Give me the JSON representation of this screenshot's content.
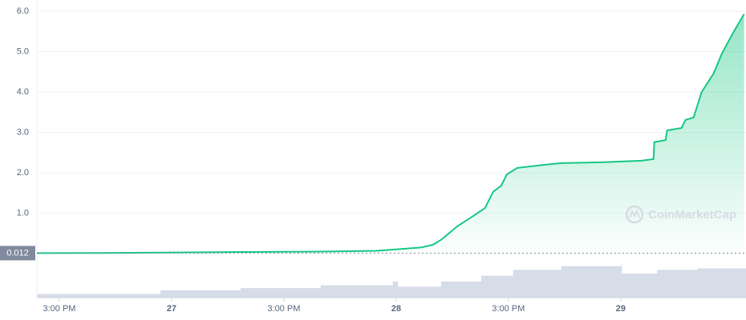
{
  "chart_data": {
    "type": "line",
    "color": "#16c784",
    "x": [
      -14.4,
      -8.06,
      -1.2,
      7.37,
      15.94,
      21.94,
      23.66,
      26.66,
      27.94,
      28.8,
      30.51,
      32.23,
      33.51,
      34.37,
      35.23,
      35.83,
      36.94,
      39.94,
      41.66,
      45.94,
      50.23,
      51.51,
      51.6,
      52.8,
      52.97,
      54.51,
      54.94,
      55.8,
      56.66,
      57.94,
      58.8,
      60.08,
      61.2
    ],
    "values": [
      0.012,
      0.015,
      0.025,
      0.04,
      0.05,
      0.07,
      0.1,
      0.15,
      0.22,
      0.34,
      0.67,
      0.93,
      1.13,
      1.53,
      1.68,
      1.96,
      2.12,
      2.2,
      2.24,
      2.26,
      2.3,
      2.34,
      2.76,
      2.81,
      3.05,
      3.11,
      3.31,
      3.37,
      4.0,
      4.46,
      4.94,
      5.49,
      5.93
    ],
    "xlim": [
      -14.4,
      61.4
    ],
    "ylim": [
      0,
      6
    ],
    "yticks": [
      {
        "value": 1,
        "label": "1.0"
      },
      {
        "value": 2,
        "label": "2.0"
      },
      {
        "value": 3,
        "label": "3.0"
      },
      {
        "value": 4,
        "label": "4.0"
      },
      {
        "value": 5,
        "label": "5.0"
      },
      {
        "value": 6,
        "label": "6.0"
      }
    ],
    "xticks": [
      {
        "value": -12,
        "label": "3:00 PM"
      },
      {
        "value": 0,
        "label": "27"
      },
      {
        "value": 12,
        "label": "3:00 PM"
      },
      {
        "value": 24,
        "label": "28"
      },
      {
        "value": 36,
        "label": "3:00 PM"
      },
      {
        "value": 48,
        "label": "29"
      }
    ],
    "grid": true,
    "reference_value": 0.012,
    "watermark": "CoinMarketCap",
    "volume": {
      "color": "#cfd6e4",
      "x": [
        -14.4,
        -1.2,
        7.37,
        15.94,
        23.66,
        24.2,
        28.8,
        33.1,
        36.5,
        41.66,
        48.06,
        48.14,
        51.9,
        56.2,
        61.4
      ],
      "values": [
        5,
        10,
        13,
        17,
        22,
        15,
        22,
        30,
        38,
        43,
        47,
        33,
        38,
        40,
        57
      ]
    }
  }
}
